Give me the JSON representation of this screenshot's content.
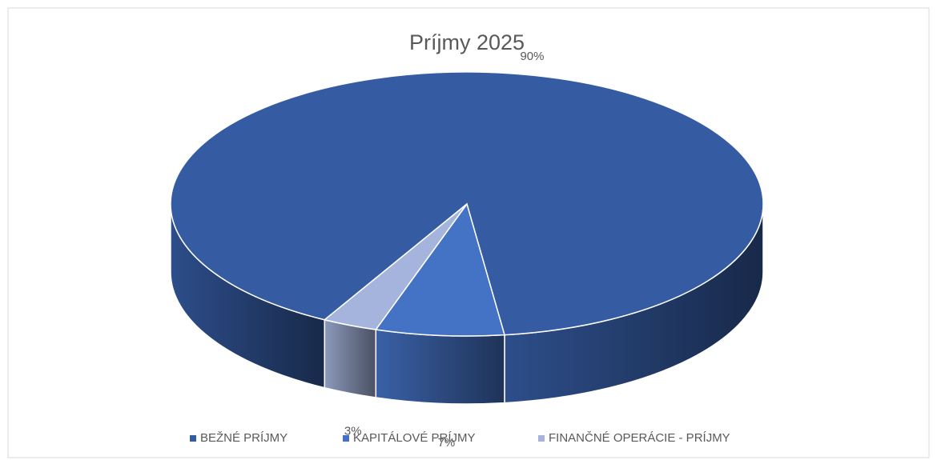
{
  "chart_data": {
    "type": "pie",
    "title": "Príjmy 2025",
    "categories": [
      "BEŽNÉ PRÍJMY",
      "KAPITÁLOVÉ PRÍJMY",
      "FINANČNÉ OPERÁCIE - PRÍJMY"
    ],
    "values": [
      90,
      7,
      3
    ],
    "value_labels": [
      "90%",
      "7%",
      "3%"
    ],
    "colors": [
      "#355ca3",
      "#4472c4",
      "#a5b4dc"
    ],
    "legend": "bottom"
  }
}
